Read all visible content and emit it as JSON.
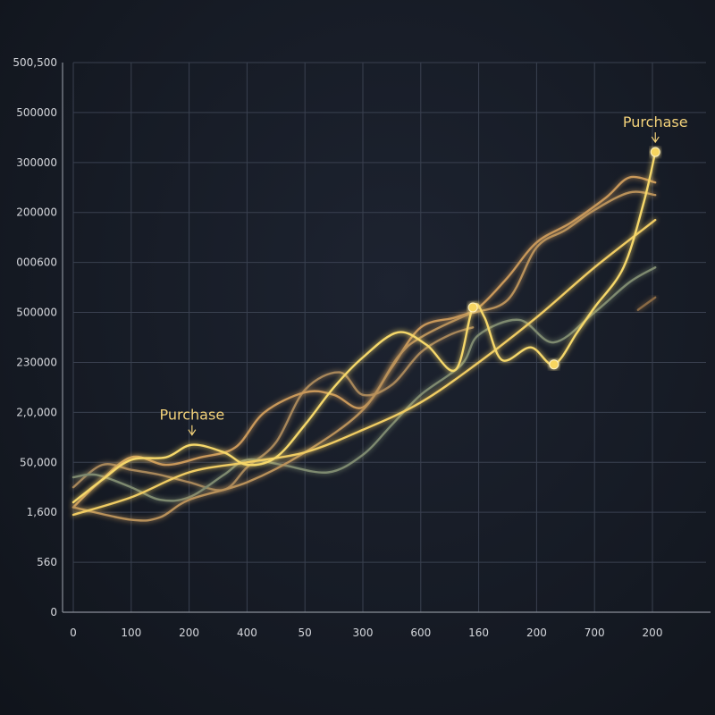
{
  "chart_data": {
    "type": "line",
    "title": "",
    "xlabel": "",
    "ylabel": "",
    "x_tick_labels": [
      "0",
      "100",
      "200",
      "400",
      "50",
      "300",
      "600",
      "160",
      "200",
      "700",
      "200"
    ],
    "y_tick_labels": [
      "0",
      "560",
      "1,600",
      "50,000",
      "2,0,000",
      "230000",
      "500000",
      "000600",
      "200000",
      "300000",
      "500000",
      "500,500"
    ],
    "grid": true,
    "legend": "none",
    "annotations": [
      {
        "text": "Purchase",
        "series": "series-1",
        "x_index": 2.05
      },
      {
        "text": "Purchase",
        "series": "series-1",
        "x_index": 10.05
      }
    ],
    "markers": [
      {
        "series": "series-1",
        "x_index": 6.9,
        "y_index": 6.1
      },
      {
        "series": "series-1",
        "x_index": 8.3,
        "y_index": 4.96
      },
      {
        "series": "series-1",
        "x_index": 10.05,
        "y_index": 9.21
      }
    ],
    "series": [
      {
        "color": "#f6d86b",
        "x": [
          0,
          0.5,
          1,
          1.6,
          2.05,
          2.6,
          3,
          3.5,
          4,
          4.5,
          5,
          5.6,
          6.1,
          6.6,
          6.9,
          7.1,
          7.4,
          7.9,
          8.3,
          8.7,
          9,
          9.5,
          9.85,
          10.05
        ],
        "y": [
          2.2,
          2.65,
          3.05,
          3.1,
          3.35,
          3.2,
          2.95,
          3.1,
          3.75,
          4.5,
          5.1,
          5.6,
          5.35,
          4.85,
          6.1,
          5.9,
          5.05,
          5.3,
          4.96,
          5.6,
          6.1,
          6.9,
          8.2,
          9.21
        ]
      },
      {
        "color": "#f0cc63",
        "x": [
          0,
          1,
          2,
          3,
          4,
          5,
          6,
          7,
          8,
          9,
          10.05
        ],
        "y": [
          1.95,
          2.3,
          2.8,
          3.0,
          3.2,
          3.65,
          4.2,
          5.0,
          5.9,
          6.9,
          7.85
        ]
      },
      {
        "color": "#b9915a",
        "x": [
          0,
          1,
          1.5,
          2,
          3,
          4,
          5,
          5.6,
          6,
          6.8,
          7.5,
          8,
          8.5,
          9,
          9.6,
          10.05
        ],
        "y": [
          2.1,
          1.85,
          1.9,
          2.25,
          2.6,
          3.2,
          4.05,
          5.1,
          5.5,
          5.95,
          6.25,
          7.3,
          7.65,
          8.05,
          8.4,
          8.35
        ]
      },
      {
        "color": "#c9985a",
        "x": [
          0,
          0.4,
          1,
          1.6,
          2.2,
          2.8,
          3.3,
          4,
          4.5,
          5,
          5.5,
          6,
          6.6,
          7,
          7.5,
          8,
          8.6,
          9.2,
          9.6,
          10.05
        ],
        "y": [
          2.1,
          2.55,
          3.1,
          2.95,
          3.1,
          3.3,
          4.0,
          4.4,
          4.35,
          4.1,
          4.9,
          5.7,
          5.9,
          6.1,
          6.7,
          7.4,
          7.8,
          8.3,
          8.7,
          8.6
        ]
      },
      {
        "color": "#7e8a70",
        "x": [
          0,
          0.4,
          1,
          1.5,
          2,
          2.6,
          3,
          3.6,
          4.4,
          5,
          5.5,
          6,
          6.7,
          7,
          7.7,
          8.3,
          9,
          9.6,
          10.05
        ],
        "y": [
          2.7,
          2.75,
          2.5,
          2.25,
          2.3,
          2.75,
          3.05,
          2.95,
          2.8,
          3.15,
          3.75,
          4.35,
          4.95,
          5.55,
          5.85,
          5.4,
          6.0,
          6.6,
          6.9
        ]
      },
      {
        "color": "#a8875a",
        "x": [
          0,
          0.5,
          1,
          1.5,
          2,
          2.6,
          3,
          3.5,
          4,
          4.6,
          5,
          5.5,
          6,
          6.5,
          6.9
        ],
        "y": [
          2.5,
          2.95,
          2.85,
          2.75,
          2.6,
          2.45,
          2.9,
          3.4,
          4.45,
          4.8,
          4.35,
          4.55,
          5.2,
          5.55,
          5.7
        ]
      },
      {
        "color": "#8a6a44",
        "x": [
          9.75,
          10.05
        ],
        "y": [
          6.05,
          6.3
        ]
      }
    ]
  }
}
